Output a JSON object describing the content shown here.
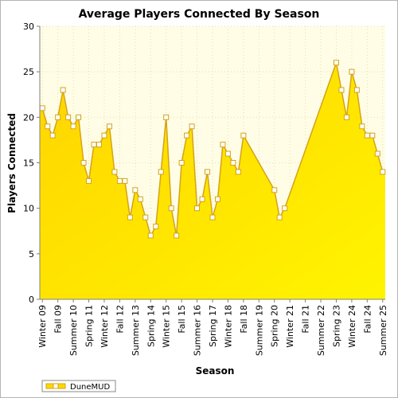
{
  "chart_data": {
    "type": "area",
    "title": "Average Players Connected By Season",
    "xlabel": "Season",
    "ylabel": "Players Connected",
    "ylim": [
      0,
      30
    ],
    "yticks": [
      0,
      5,
      10,
      15,
      20,
      25,
      30
    ],
    "grid": true,
    "legend_position": "bottom-left",
    "colors": {
      "fill_top": "#fff000",
      "fill_bottom": "#ffd200",
      "line": "#d4a317",
      "plot_bg": "#fffde6",
      "grid": "#e4e0b0",
      "marker_fill": "#ffffff"
    },
    "categories": [
      "Winter 09",
      "Spring 09",
      "Summer 09",
      "Fall 09",
      "Winter 10",
      "Spring 10",
      "Summer 10",
      "Fall 10",
      "Winter 11",
      "Spring 11",
      "Summer 11",
      "Fall 11",
      "Winter 12",
      "Spring 12",
      "Summer 12",
      "Fall 12",
      "Winter 13",
      "Spring 13",
      "Summer 13",
      "Fall 13",
      "Winter 14",
      "Spring 14",
      "Summer 14",
      "Fall 14",
      "Winter 15",
      "Spring 15",
      "Summer 15",
      "Fall 15",
      "Winter 16",
      "Spring 16",
      "Summer 16",
      "Fall 16",
      "Winter 17",
      "Spring 17",
      "Summer 17",
      "Fall 17",
      "Winter 18",
      "Spring 18",
      "Summer 18",
      "Fall 18",
      "Winter 19",
      "Spring 19",
      "Summer 19",
      "Fall 19",
      "Winter 20",
      "Spring 20",
      "Summer 20",
      "Fall 20",
      "Winter 21",
      "Spring 21",
      "Summer 21",
      "Fall 21",
      "Winter 22",
      "Spring 22",
      "Summer 22",
      "Fall 22",
      "Winter 23",
      "Spring 23",
      "Summer 23",
      "Fall 23",
      "Winter 24",
      "Spring 24",
      "Summer 24",
      "Fall 24",
      "Winter 25",
      "Spring 25",
      "Summer 25"
    ],
    "shown_tick_labels": [
      "Winter 09",
      "Fall 09",
      "Summer 10",
      "Spring 11",
      "Winter 12",
      "Fall 12",
      "Summer 13",
      "Spring 14",
      "Winter 15",
      "Fall 15",
      "Summer 16",
      "Spring 17",
      "Winter 18",
      "Fall 18",
      "Summer 19",
      "Spring 20",
      "Winter 21",
      "Fall 21",
      "Summer 22",
      "Spring 23",
      "Winter 24",
      "Fall 24",
      "Summer 25"
    ],
    "series": [
      {
        "name": "DuneMUD",
        "values": [
          21,
          19,
          18,
          20,
          23,
          20,
          19,
          20,
          15,
          13,
          17,
          17,
          18,
          19,
          14,
          13,
          13,
          9,
          12,
          11,
          9,
          7,
          8,
          14,
          20,
          10,
          7,
          15,
          18,
          19,
          10,
          11,
          14,
          9,
          11,
          17,
          16,
          15,
          14,
          18,
          null,
          null,
          null,
          null,
          null,
          12,
          9,
          10,
          null,
          null,
          null,
          null,
          null,
          null,
          null,
          null,
          null,
          26,
          23,
          20,
          25,
          23,
          19,
          18,
          18,
          16,
          14
        ]
      }
    ]
  }
}
